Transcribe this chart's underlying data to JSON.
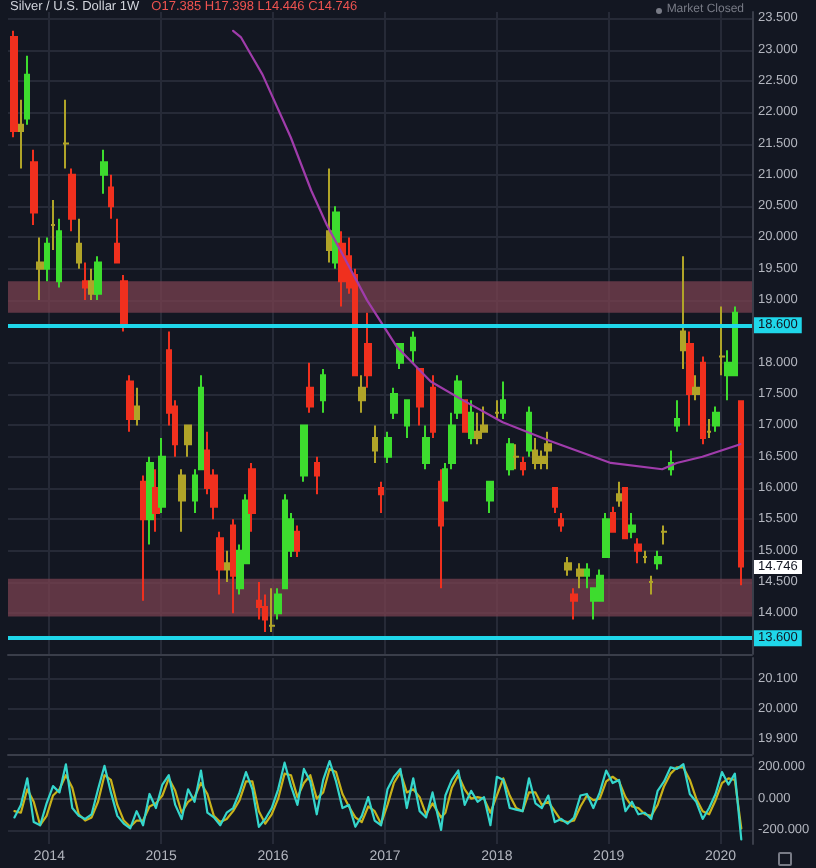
{
  "chart_data": [
    {
      "type": "candlestick",
      "title": "Silver / U.S. Dollar 1W",
      "subtitle": "O17.385 H17.398 L14.446 C14.746",
      "annotations": [
        "Market Closed",
        {
          "text": "14.746",
          "x": "2020-03-09",
          "y": 14.746
        }
      ],
      "xlim": [
        "2013-08-19",
        "2020-04-13"
      ],
      "xticks": [
        "2014",
        "2015",
        "2016",
        "2017",
        "2018",
        "2019",
        "2020"
      ],
      "ylim": [
        13.35,
        23.6
      ],
      "yticks": [
        {
          "value": 14,
          "label": "14.000"
        },
        {
          "value": 14.5,
          "label": "14.500"
        },
        {
          "value": 15,
          "label": "15.000"
        },
        {
          "value": 15.5,
          "label": "15.500"
        },
        {
          "value": 16,
          "label": "16.000"
        },
        {
          "value": 16.5,
          "label": "16.500"
        },
        {
          "value": 17,
          "label": "17.000"
        },
        {
          "value": 17.5,
          "label": "17.500"
        },
        {
          "value": 18,
          "label": "18.000"
        },
        {
          "value": 19,
          "label": "19.000"
        },
        {
          "value": 19.5,
          "label": "19.500"
        },
        {
          "value": 20,
          "label": "20.000"
        },
        {
          "value": 20.5,
          "label": "20.500"
        },
        {
          "value": 21,
          "label": "21.000"
        },
        {
          "value": 21.5,
          "label": "21.500"
        },
        {
          "value": 22,
          "label": "22.000"
        },
        {
          "value": 22.5,
          "label": "22.500"
        },
        {
          "value": 23,
          "label": "23.000"
        },
        {
          "value": 23.5,
          "label": "23.500"
        }
      ],
      "tick_labels": "y",
      "grid": true,
      "ref_lines": [
        {
          "axis": "y",
          "value": 18.6,
          "label": "18.600",
          "color": "#1fd7ea"
        },
        {
          "axis": "y",
          "value": 13.6,
          "label": "13.600",
          "color": "#1fd7ea"
        }
      ],
      "bands": [
        {
          "axis": "y",
          "from": 18.8,
          "to": 19.3,
          "color": "#7a4250"
        },
        {
          "axis": "y",
          "from": 13.95,
          "to": 14.55,
          "color": "#7a4250"
        }
      ],
      "series": [
        {
          "x": [
            "2013-09-09",
            "2013-09-30",
            "2013-10-21",
            "2013-11-11",
            "2013-12-02",
            "2013-12-23",
            "2014-01-13",
            "2014-02-03",
            "2014-02-24",
            "2014-03-17",
            "2014-04-07",
            "2014-04-28",
            "2014-05-19",
            "2014-06-09",
            "2014-06-30",
            "2014-07-21",
            "2014-08-11",
            "2014-09-01",
            "2014-09-22",
            "2014-10-13",
            "2014-11-03",
            "2014-11-24",
            "2014-12-15",
            "2015-01-05",
            "2015-01-26",
            "2015-02-16",
            "2015-03-09",
            "2015-03-30",
            "2015-04-20",
            "2015-05-11",
            "2015-06-01",
            "2015-06-22",
            "2015-07-13",
            "2015-08-03",
            "2015-08-24",
            "2015-09-14",
            "2015-10-05",
            "2015-10-26",
            "2015-11-16",
            "2015-12-07",
            "2015-12-28",
            "2016-01-18",
            "2016-02-08",
            "2016-02-29",
            "2016-03-21",
            "2016-04-11",
            "2016-05-02",
            "2016-05-23",
            "2016-06-13",
            "2016-07-04",
            "2016-07-25",
            "2016-08-15",
            "2016-09-05",
            "2016-09-26",
            "2016-10-17",
            "2016-11-07",
            "2016-11-28",
            "2016-12-19",
            "2017-01-09",
            "2017-01-30",
            "2017-02-20",
            "2017-03-13",
            "2017-04-03",
            "2017-04-24",
            "2017-05-15",
            "2017-06-05",
            "2017-07-03",
            "2017-07-17",
            "2017-08-07",
            "2017-08-28",
            "2017-09-18",
            "2017-10-09",
            "2017-10-30",
            "2017-11-20",
            "2017-12-11",
            "2018-01-01",
            "2018-01-22",
            "2018-02-12",
            "2018-03-05",
            "2018-03-26",
            "2018-04-16",
            "2018-05-07",
            "2018-05-28",
            "2018-06-18",
            "2018-07-09",
            "2018-07-30",
            "2018-08-20",
            "2018-09-10",
            "2018-10-01",
            "2018-10-22",
            "2018-11-12",
            "2018-12-03",
            "2018-12-24",
            "2019-01-14",
            "2019-02-04",
            "2019-02-25",
            "2019-03-18",
            "2019-04-08",
            "2019-04-29",
            "2019-05-20",
            "2019-06-10",
            "2019-07-01",
            "2019-07-22",
            "2019-08-12",
            "2019-09-02",
            "2019-09-23",
            "2019-10-14",
            "2019-11-04",
            "2019-11-25",
            "2019-12-16",
            "2020-01-06",
            "2020-01-27",
            "2020-02-17",
            "2020-03-09"
          ],
          "ohlc": [
            [
              23.2,
              23.3,
              21.6,
              21.7
            ],
            [
              21.7,
              22.2,
              21.1,
              21.8
            ],
            [
              21.9,
              22.9,
              21.8,
              22.6
            ],
            [
              21.2,
              21.4,
              20.2,
              20.4
            ],
            [
              19.6,
              20.0,
              19.0,
              19.5
            ],
            [
              19.5,
              20.0,
              19.3,
              19.9
            ],
            [
              20.2,
              20.6,
              19.8,
              20.2
            ],
            [
              19.3,
              20.3,
              19.2,
              20.1
            ],
            [
              21.5,
              22.2,
              21.1,
              21.5
            ],
            [
              21.0,
              21.1,
              20.1,
              20.3
            ],
            [
              19.6,
              20.3,
              19.5,
              19.9
            ],
            [
              19.3,
              19.6,
              19.0,
              19.2
            ],
            [
              19.3,
              19.5,
              19.0,
              19.1
            ],
            [
              19.1,
              19.7,
              19.0,
              19.6
            ],
            [
              21.0,
              21.4,
              20.7,
              21.2
            ],
            [
              20.8,
              21.0,
              20.3,
              20.5
            ],
            [
              19.9,
              20.3,
              19.6,
              19.6
            ],
            [
              19.3,
              19.4,
              18.5,
              18.6
            ],
            [
              17.7,
              17.8,
              16.9,
              17.1
            ],
            [
              17.1,
              17.6,
              17.0,
              17.3
            ],
            [
              16.1,
              16.2,
              14.2,
              15.5
            ],
            [
              15.5,
              16.5,
              15.1,
              16.4
            ],
            [
              16.0,
              16.3,
              15.3,
              15.6
            ],
            [
              15.7,
              16.8,
              15.6,
              16.5
            ],
            [
              18.2,
              18.5,
              17.0,
              17.2
            ],
            [
              17.3,
              17.4,
              16.5,
              16.7
            ],
            [
              16.2,
              16.3,
              15.3,
              15.8
            ],
            [
              17.0,
              17.0,
              16.5,
              16.7
            ],
            [
              15.8,
              16.3,
              15.6,
              16.2
            ],
            [
              16.3,
              17.8,
              16.3,
              17.6
            ],
            [
              16.6,
              16.9,
              15.9,
              16.0
            ],
            [
              16.2,
              16.3,
              15.5,
              15.7
            ],
            [
              15.2,
              15.3,
              14.3,
              14.7
            ],
            [
              14.7,
              15.0,
              14.5,
              14.8
            ],
            [
              15.4,
              15.5,
              14.0,
              14.6
            ],
            [
              14.4,
              15.1,
              14.3,
              15.0
            ],
            [
              14.8,
              15.9,
              14.8,
              15.8
            ],
            [
              16.3,
              16.4,
              15.3,
              15.6
            ],
            [
              14.2,
              14.5,
              13.9,
              14.1
            ],
            [
              14.1,
              14.3,
              13.7,
              13.9
            ],
            [
              13.8,
              14.4,
              13.7,
              13.8
            ],
            [
              14.0,
              14.4,
              13.9,
              14.3
            ],
            [
              14.4,
              15.9,
              14.4,
              15.8
            ],
            [
              15.0,
              15.6,
              14.9,
              15.5
            ],
            [
              15.3,
              15.4,
              14.9,
              15.0
            ],
            [
              16.2,
              17.0,
              16.1,
              17.0
            ],
            [
              17.6,
              18.0,
              17.2,
              17.3
            ],
            [
              16.4,
              16.5,
              15.9,
              16.2
            ],
            [
              17.4,
              17.9,
              17.2,
              17.8
            ],
            [
              19.8,
              21.1,
              19.6,
              20.1
            ],
            [
              19.6,
              20.5,
              19.5,
              20.4
            ],
            [
              19.9,
              20.1,
              18.9,
              19.3
            ],
            [
              19.7,
              20.0,
              19.1,
              19.2
            ],
            [
              19.4,
              19.5,
              17.8,
              17.8
            ],
            [
              17.4,
              17.8,
              17.2,
              17.6
            ],
            [
              18.3,
              18.8,
              17.6,
              17.8
            ],
            [
              16.6,
              17.0,
              16.4,
              16.8
            ],
            [
              16.0,
              16.1,
              15.6,
              15.9
            ],
            [
              16.5,
              16.9,
              16.4,
              16.8
            ],
            [
              17.2,
              17.6,
              17.1,
              17.5
            ],
            [
              18.0,
              18.3,
              17.9,
              18.3
            ],
            [
              17.0,
              17.4,
              16.8,
              17.4
            ],
            [
              18.2,
              18.5,
              18.0,
              18.4
            ],
            [
              17.9,
              17.9,
              17.0,
              17.3
            ],
            [
              16.4,
              17.0,
              16.3,
              16.8
            ],
            [
              17.6,
              17.8,
              16.8,
              16.9
            ],
            [
              16.1,
              16.3,
              14.4,
              15.4
            ],
            [
              15.8,
              16.4,
              15.8,
              16.3
            ],
            [
              16.4,
              17.2,
              16.3,
              17.0
            ],
            [
              17.2,
              17.8,
              17.1,
              17.7
            ],
            [
              17.4,
              17.4,
              16.9,
              16.9
            ],
            [
              16.8,
              17.4,
              16.7,
              17.2
            ],
            [
              16.8,
              17.2,
              16.7,
              16.9
            ],
            [
              17.0,
              17.3,
              16.9,
              16.9
            ],
            [
              15.8,
              16.1,
              15.6,
              16.1
            ],
            [
              17.2,
              17.4,
              17.1,
              17.2
            ],
            [
              17.2,
              17.7,
              17.1,
              17.4
            ],
            [
              16.3,
              16.8,
              16.2,
              16.7
            ],
            [
              16.5,
              16.7,
              16.3,
              16.5
            ],
            [
              16.4,
              16.5,
              16.2,
              16.3
            ],
            [
              16.6,
              17.3,
              16.5,
              17.2
            ],
            [
              16.4,
              16.8,
              16.3,
              16.6
            ],
            [
              16.5,
              16.6,
              16.3,
              16.4
            ],
            [
              16.7,
              16.9,
              16.3,
              16.6
            ],
            [
              16.0,
              16.0,
              15.6,
              15.7
            ],
            [
              15.5,
              15.6,
              15.3,
              15.4
            ],
            [
              14.7,
              14.9,
              14.6,
              14.8
            ],
            [
              14.3,
              14.4,
              13.9,
              14.2
            ],
            [
              14.7,
              14.8,
              14.4,
              14.6
            ],
            [
              14.6,
              14.8,
              14.4,
              14.7
            ],
            [
              14.2,
              14.4,
              13.9,
              14.4
            ],
            [
              14.2,
              14.7,
              14.2,
              14.6
            ],
            [
              14.9,
              15.6,
              14.9,
              15.5
            ],
            [
              15.6,
              15.7,
              15.3,
              15.3
            ],
            [
              15.9,
              16.1,
              15.7,
              15.8
            ],
            [
              16.0,
              16.0,
              15.2,
              15.2
            ],
            [
              15.3,
              15.6,
              15.2,
              15.4
            ],
            [
              15.1,
              15.2,
              14.8,
              15.0
            ],
            [
              14.9,
              15.0,
              14.8,
              14.9
            ],
            [
              14.5,
              14.6,
              14.3,
              14.5
            ],
            [
              14.8,
              15.0,
              14.7,
              14.9
            ],
            [
              15.3,
              15.4,
              15.1,
              15.3
            ],
            [
              16.3,
              16.6,
              16.2,
              16.4
            ],
            [
              17.0,
              17.4,
              16.9,
              17.1
            ],
            [
              18.5,
              19.7,
              17.9,
              18.2
            ],
            [
              18.3,
              18.5,
              17.0,
              17.5
            ],
            [
              17.6,
              17.8,
              17.4,
              17.5
            ],
            [
              18.0,
              18.1,
              16.7,
              16.8
            ],
            [
              16.9,
              17.1,
              16.8,
              16.9
            ],
            [
              17.0,
              17.3,
              16.9,
              17.2
            ],
            [
              18.1,
              18.9,
              17.8,
              18.1
            ],
            [
              17.8,
              18.2,
              17.4,
              18.0
            ],
            [
              17.8,
              18.9,
              17.8,
              18.8
            ],
            [
              17.385,
              17.398,
              14.446,
              14.746
            ]
          ],
          "colors": [
            "#f0301e",
            "#b0a428",
            "#3ddc2e",
            "#f0301e",
            "#b0a428",
            "#3ddc2e",
            "#b0a428",
            "#3ddc2e",
            "#b0a428",
            "#f0301e",
            "#b0a428",
            "#f0301e",
            "#b0a428",
            "#3ddc2e",
            "#3ddc2e",
            "#f0301e",
            "#f0301e",
            "#f0301e",
            "#f0301e",
            "#b0a428",
            "#f0301e",
            "#3ddc2e",
            "#f0301e",
            "#3ddc2e",
            "#f0301e",
            "#f0301e",
            "#b0a428",
            "#b0a428",
            "#3ddc2e",
            "#3ddc2e",
            "#f0301e",
            "#f0301e",
            "#f0301e",
            "#b0a428",
            "#f0301e",
            "#3ddc2e",
            "#3ddc2e",
            "#f0301e",
            "#f0301e",
            "#f0301e",
            "#b0a428",
            "#3ddc2e",
            "#3ddc2e",
            "#3ddc2e",
            "#f0301e",
            "#3ddc2e",
            "#f0301e",
            "#f0301e",
            "#3ddc2e",
            "#b0a428",
            "#3ddc2e",
            "#f0301e",
            "#f0301e",
            "#f0301e",
            "#b0a428",
            "#f0301e",
            "#b0a428",
            "#f0301e",
            "#3ddc2e",
            "#3ddc2e",
            "#3ddc2e",
            "#3ddc2e",
            "#3ddc2e",
            "#f0301e",
            "#3ddc2e",
            "#f0301e",
            "#f0301e",
            "#3ddc2e",
            "#3ddc2e",
            "#3ddc2e",
            "#f0301e",
            "#3ddc2e",
            "#b0a428",
            "#b0a428",
            "#3ddc2e",
            "#b0a428",
            "#3ddc2e",
            "#3ddc2e",
            "#b0a428",
            "#f0301e",
            "#3ddc2e",
            "#b0a428",
            "#b0a428",
            "#b0a428",
            "#f0301e",
            "#f0301e",
            "#b0a428",
            "#f0301e",
            "#b0a428",
            "#3ddc2e",
            "#3ddc2e",
            "#3ddc2e",
            "#3ddc2e",
            "#f0301e",
            "#b0a428",
            "#f0301e",
            "#3ddc2e",
            "#f0301e",
            "#b0a428",
            "#b0a428",
            "#3ddc2e",
            "#b0a428",
            "#3ddc2e",
            "#3ddc2e",
            "#b0a428",
            "#f0301e",
            "#b0a428",
            "#f0301e",
            "#b0a428",
            "#3ddc2e",
            "#b0a428",
            "#3ddc2e",
            "#3ddc2e",
            "#f0301e"
          ]
        },
        {
          "type": "line",
          "color": "#a03cab",
          "x": [
            "2015-08-24",
            "2015-09-18",
            "2015-11-28",
            "2016-02-28",
            "2016-05-05",
            "2016-06-25",
            "2016-11-03",
            "2017-02-09",
            "2017-05-30",
            "2017-09-13",
            "2018-01-20",
            "2018-06-24",
            "2019-01-08",
            "2019-06-25",
            "2019-08-11",
            "2019-11-03",
            "2020-03-06"
          ],
          "values": [
            23.3,
            23.2,
            22.6,
            21.6,
            20.75,
            20.2,
            19.0,
            18.25,
            17.7,
            17.4,
            17.05,
            16.75,
            16.4,
            16.3,
            16.4,
            16.5,
            16.7
          ]
        }
      ]
    },
    {
      "type": "line",
      "xlim": [
        "2013-08-19",
        "2020-04-13"
      ],
      "xticks": [
        "2014",
        "2015",
        "2016",
        "2017",
        "2018",
        "2019",
        "2020"
      ],
      "ylim": [
        19.85,
        20.17
      ],
      "yticks": [
        {
          "value": 19.9,
          "label": "19.900"
        },
        {
          "value": 20,
          "label": "20.000"
        },
        {
          "value": 20.1,
          "label": "20.100"
        }
      ],
      "tick_labels": "y",
      "grid": true
    },
    {
      "type": "line",
      "xlim": [
        "2013-08-19",
        "2020-04-13"
      ],
      "xticks": [
        "2014",
        "2015",
        "2016",
        "2017",
        "2018",
        "2019",
        "2020"
      ],
      "ylim": [
        -290,
        260
      ],
      "yticks": [
        {
          "value": -200,
          "label": "-200.000"
        },
        {
          "value": 0,
          "label": "0.000"
        },
        {
          "value": 200,
          "label": "200.000"
        }
      ],
      "grid": true,
      "x": [
        "2013-09-09",
        "2013-09-30",
        "2013-10-21",
        "2013-11-11",
        "2013-12-02",
        "2013-12-23",
        "2014-01-13",
        "2014-02-03",
        "2014-02-24",
        "2014-03-17",
        "2014-04-07",
        "2014-04-28",
        "2014-05-19",
        "2014-06-09",
        "2014-06-30",
        "2014-07-21",
        "2014-08-11",
        "2014-09-01",
        "2014-09-22",
        "2014-10-13",
        "2014-11-03",
        "2014-11-24",
        "2014-12-15",
        "2015-01-05",
        "2015-01-26",
        "2015-02-16",
        "2015-03-09",
        "2015-03-30",
        "2015-04-20",
        "2015-05-11",
        "2015-06-01",
        "2015-06-22",
        "2015-07-13",
        "2015-08-03",
        "2015-08-24",
        "2015-09-14",
        "2015-10-05",
        "2015-10-26",
        "2015-11-16",
        "2015-12-07",
        "2015-12-28",
        "2016-01-18",
        "2016-02-08",
        "2016-02-29",
        "2016-03-21",
        "2016-04-11",
        "2016-05-02",
        "2016-05-23",
        "2016-06-13",
        "2016-07-04",
        "2016-07-25",
        "2016-08-15",
        "2016-09-05",
        "2016-09-26",
        "2016-10-17",
        "2016-11-07",
        "2016-11-28",
        "2016-12-19",
        "2017-01-09",
        "2017-01-30",
        "2017-02-20",
        "2017-03-13",
        "2017-04-03",
        "2017-04-24",
        "2017-05-15",
        "2017-06-05",
        "2017-07-03",
        "2017-07-17",
        "2017-08-07",
        "2017-08-28",
        "2017-09-18",
        "2017-10-09",
        "2017-10-30",
        "2017-11-20",
        "2017-12-11",
        "2018-01-01",
        "2018-01-22",
        "2018-02-12",
        "2018-03-05",
        "2018-03-26",
        "2018-04-16",
        "2018-05-07",
        "2018-05-28",
        "2018-06-18",
        "2018-07-09",
        "2018-07-30",
        "2018-08-20",
        "2018-09-10",
        "2018-10-01",
        "2018-10-22",
        "2018-11-12",
        "2018-12-03",
        "2018-12-24",
        "2019-01-14",
        "2019-02-04",
        "2019-02-25",
        "2019-03-18",
        "2019-04-08",
        "2019-04-29",
        "2019-05-20",
        "2019-06-10",
        "2019-07-01",
        "2019-07-22",
        "2019-08-12",
        "2019-09-02",
        "2019-09-23",
        "2019-10-14",
        "2019-11-04",
        "2019-11-25",
        "2019-12-16",
        "2020-01-06",
        "2020-01-27",
        "2020-02-17",
        "2020-03-09"
      ],
      "series": [
        {
          "color": "#c9b21a",
          "values": [
            -80,
            -90,
            60,
            -20,
            -170,
            -110,
            20,
            60,
            150,
            70,
            -100,
            -140,
            -120,
            -20,
            150,
            120,
            -40,
            -140,
            -180,
            -140,
            -140,
            -50,
            -30,
            20,
            130,
            50,
            -90,
            -20,
            10,
            100,
            30,
            -110,
            -150,
            -130,
            -80,
            -10,
            110,
            110,
            -80,
            -160,
            -100,
            0,
            160,
            150,
            10,
            100,
            150,
            0,
            40,
            190,
            170,
            30,
            -50,
            -120,
            -150,
            -50,
            -80,
            -160,
            -40,
            100,
            170,
            40,
            60,
            10,
            -100,
            -30,
            -120,
            -90,
            70,
            150,
            60,
            0,
            10,
            0,
            -90,
            20,
            130,
            20,
            -60,
            -80,
            40,
            40,
            -40,
            -20,
            -80,
            -140,
            -150,
            -140,
            -50,
            20,
            -10,
            0,
            110,
            140,
            110,
            10,
            -50,
            -60,
            -100,
            -110,
            -40,
            80,
            160,
            200,
            200,
            120,
            0,
            -80,
            -100,
            -10,
            100,
            130,
            120,
            -190
          ]
        },
        {
          "color": "#35d6cc",
          "values": [
            -120,
            -40,
            130,
            -150,
            -170,
            -30,
            80,
            40,
            220,
            -60,
            -110,
            -130,
            -100,
            60,
            210,
            40,
            -110,
            -160,
            -190,
            -80,
            -170,
            30,
            -60,
            90,
            150,
            -40,
            -130,
            60,
            -20,
            180,
            -90,
            -120,
            -170,
            -90,
            -60,
            40,
            170,
            60,
            -180,
            -130,
            -60,
            60,
            230,
            80,
            -40,
            190,
            110,
            -100,
            120,
            240,
            110,
            -60,
            -40,
            -180,
            -110,
            10,
            -140,
            -170,
            60,
            140,
            190,
            -60,
            130,
            -80,
            -120,
            40,
            -200,
            20,
            120,
            180,
            -40,
            50,
            -20,
            10,
            -170,
            140,
            120,
            -60,
            -70,
            -80,
            130,
            -30,
            -60,
            20,
            -150,
            -130,
            -160,
            -120,
            20,
            30,
            -60,
            40,
            180,
            100,
            120,
            -80,
            -20,
            -100,
            -90,
            -130,
            50,
            110,
            200,
            190,
            220,
            30,
            -20,
            -130,
            -60,
            30,
            170,
            90,
            160,
            -260
          ]
        }
      ]
    }
  ]
}
